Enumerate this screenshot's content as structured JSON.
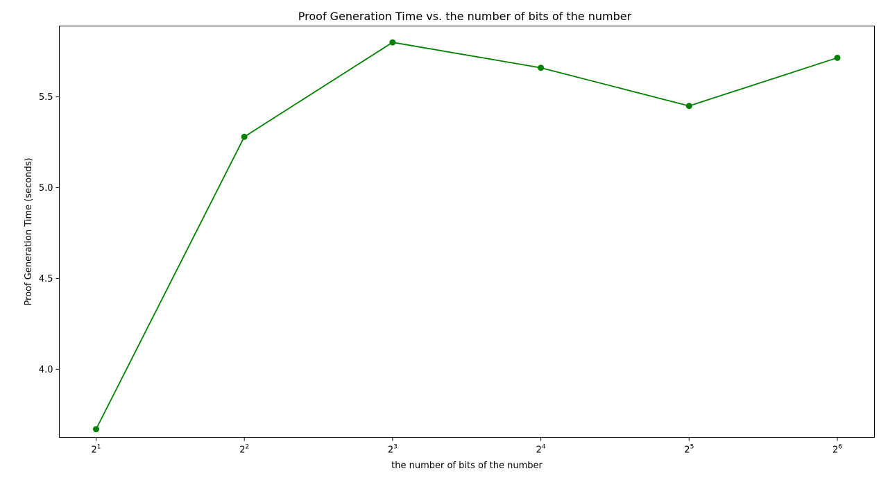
{
  "chart_data": {
    "type": "line",
    "title": "Proof Generation Time vs. the number of bits of the number",
    "xlabel": "the number of bits of the number",
    "ylabel": "Proof Generation Time (seconds)",
    "x_scale": "log2",
    "x": [
      2,
      4,
      8,
      16,
      32,
      64
    ],
    "x_tick_labels": [
      {
        "base": "2",
        "exp": "1"
      },
      {
        "base": "2",
        "exp": "2"
      },
      {
        "base": "2",
        "exp": "3"
      },
      {
        "base": "2",
        "exp": "4"
      },
      {
        "base": "2",
        "exp": "5"
      },
      {
        "base": "2",
        "exp": "6"
      }
    ],
    "series": [
      {
        "values": [
          3.67,
          5.28,
          5.8,
          5.66,
          5.45,
          5.715
        ],
        "color": "#008000",
        "marker": "circle"
      }
    ],
    "y_ticks": [
      "4.0",
      "4.5",
      "5.0",
      "5.5"
    ],
    "ylim": [
      3.625,
      5.89
    ],
    "grid": false,
    "legend": false
  }
}
